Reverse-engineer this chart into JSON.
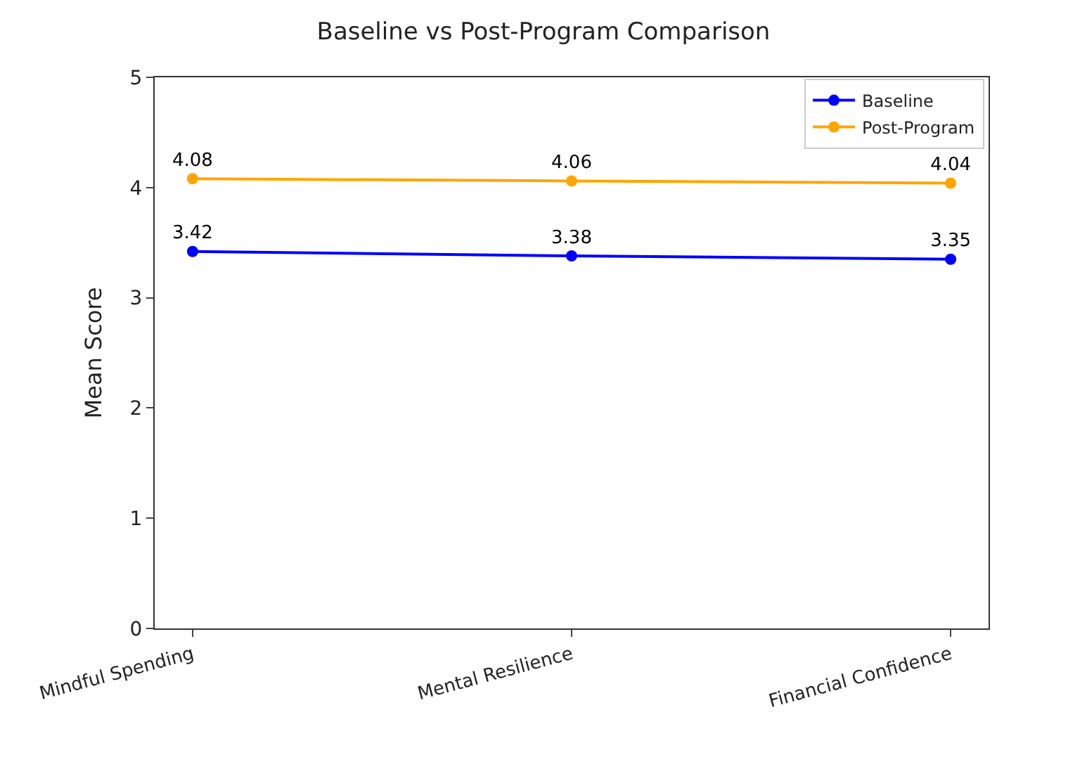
{
  "chart_data": {
    "type": "line",
    "title": "Baseline vs Post-Program Comparison",
    "ylabel": "Mean Score",
    "categories": [
      "Mindful Spending",
      "Mental Resilience",
      "Financial Confidence"
    ],
    "series": [
      {
        "name": "Baseline",
        "color": "#0000ff",
        "values": [
          3.42,
          3.38,
          3.35
        ]
      },
      {
        "name": "Post-Program",
        "color": "#ffa500",
        "values": [
          4.08,
          4.06,
          4.04
        ]
      }
    ],
    "ylim": [
      0,
      5
    ],
    "yticks": [
      0,
      1,
      2,
      3,
      4,
      5
    ],
    "data_labels": true,
    "marker": "circle",
    "legend": "top right"
  }
}
